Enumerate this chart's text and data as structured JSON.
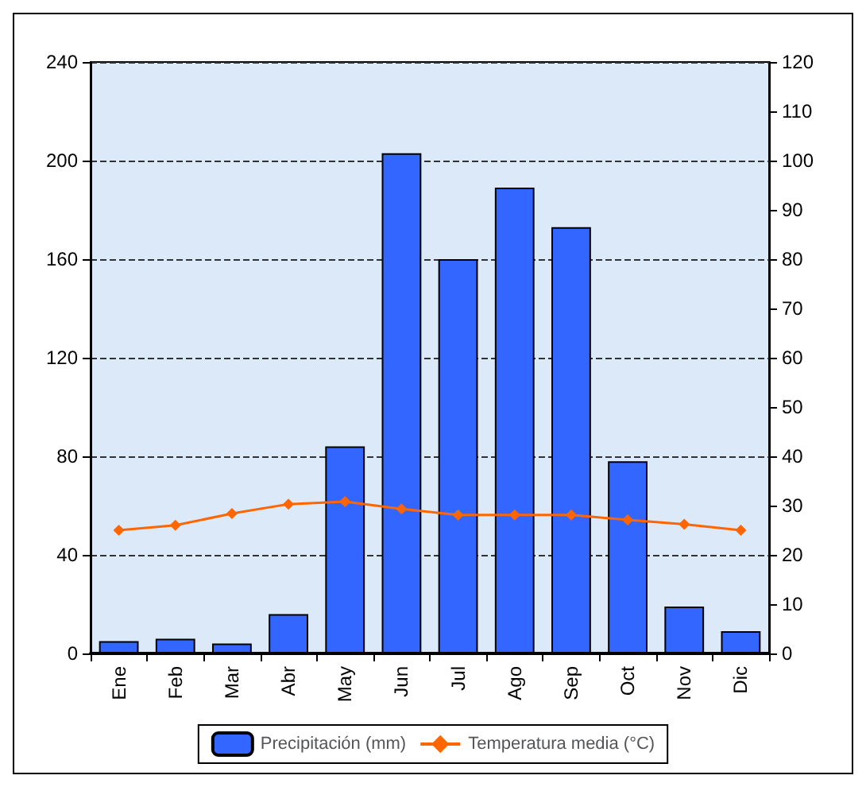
{
  "chart_data": {
    "type": "bar",
    "categories": [
      "Ene",
      "Feb",
      "Mar",
      "Abr",
      "May",
      "Jun",
      "Jul",
      "Ago",
      "Sep",
      "Oct",
      "Nov",
      "Dic"
    ],
    "series": [
      {
        "name": "Precipitación (mm)",
        "color": "#3366ff",
        "values": [
          5,
          6,
          4,
          16,
          84,
          203,
          160,
          189,
          173,
          78,
          19,
          9
        ]
      },
      {
        "name": "Temperatura media (°C)",
        "type": "line",
        "axis": "y2",
        "color": "#ff6600",
        "marker": "diamond",
        "values": [
          25,
          26,
          28.4,
          30.3,
          30.8,
          29.3,
          28.1,
          28.1,
          28.1,
          27.1,
          26.2,
          25
        ]
      }
    ],
    "ylim": [
      0,
      240
    ],
    "yticks": [
      0,
      40,
      80,
      120,
      160,
      200,
      240
    ],
    "y2lim": [
      0,
      120
    ],
    "y2ticks": [
      0,
      10,
      20,
      30,
      40,
      50,
      60,
      70,
      80,
      90,
      100,
      110,
      120
    ],
    "grid": "y",
    "legend": "bottom"
  }
}
